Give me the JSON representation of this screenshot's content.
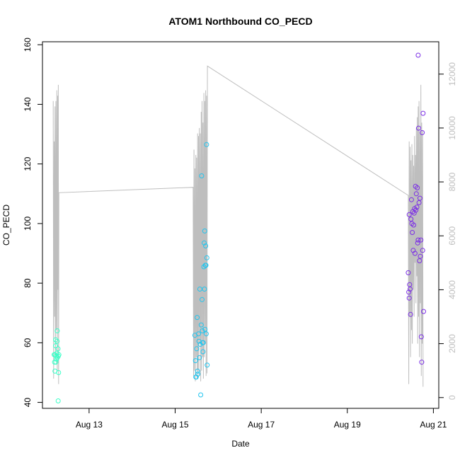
{
  "chart_data": {
    "type": "scatter",
    "title": "ATOM1 Northbound CO_PECD",
    "xlabel": "Date",
    "ylabel": "CO_PECD",
    "xlim": [
      "2023-08-11T22:00",
      "2023-08-21T03:00"
    ],
    "ylim": [
      38,
      161
    ],
    "y2lim": [
      -400,
      13200
    ],
    "x_ticks": [
      {
        "t": "2023-08-13T00:00",
        "label": "Aug 13"
      },
      {
        "t": "2023-08-15T00:00",
        "label": "Aug 15"
      },
      {
        "t": "2023-08-17T00:00",
        "label": "Aug 17"
      },
      {
        "t": "2023-08-19T00:00",
        "label": "Aug 19"
      },
      {
        "t": "2023-08-21T00:00",
        "label": "Aug 21"
      }
    ],
    "y_ticks": [
      40,
      60,
      80,
      100,
      120,
      140,
      160
    ],
    "y2_ticks": [
      0,
      2000,
      4000,
      6000,
      8000,
      10000,
      12000
    ],
    "colors": {
      "group1": "#3dffc8",
      "group2": "#21c5ef",
      "group3": "#7b2ee6",
      "secondary_line": "#bebebe",
      "axis": "#000000"
    },
    "series": [
      {
        "color": "#3dffc8",
        "points": [
          [
            "2023-08-12T04:30",
            56.0
          ],
          [
            "2023-08-12T04:45",
            53.5
          ],
          [
            "2023-08-12T05:00",
            50.5
          ],
          [
            "2023-08-12T05:00",
            56.0
          ],
          [
            "2023-08-12T05:20",
            59.0
          ],
          [
            "2023-08-12T05:20",
            61.0
          ],
          [
            "2023-08-12T05:30",
            53.5
          ],
          [
            "2023-08-12T05:45",
            55.5
          ],
          [
            "2023-08-12T05:50",
            54.5
          ],
          [
            "2023-08-12T06:00",
            56.5
          ],
          [
            "2023-08-12T06:10",
            60.5
          ],
          [
            "2023-08-12T06:15",
            64.0
          ],
          [
            "2023-08-12T06:20",
            55.0
          ],
          [
            "2023-08-12T06:40",
            58.0
          ],
          [
            "2023-08-12T06:45",
            40.5
          ],
          [
            "2023-08-12T06:50",
            55.5
          ],
          [
            "2023-08-12T07:00",
            50.0
          ],
          [
            "2023-08-12T07:10",
            56.0
          ]
        ]
      },
      {
        "color": "#21c5ef",
        "points": [
          [
            "2023-08-15T11:00",
            62.5
          ],
          [
            "2023-08-15T11:20",
            54.0
          ],
          [
            "2023-08-15T11:30",
            48.5
          ],
          [
            "2023-08-15T11:45",
            48.5
          ],
          [
            "2023-08-15T12:00",
            58.0
          ],
          [
            "2023-08-15T12:15",
            68.5
          ],
          [
            "2023-08-15T12:30",
            50.5
          ],
          [
            "2023-08-15T12:40",
            49.5
          ],
          [
            "2023-08-15T13:00",
            63.0
          ],
          [
            "2023-08-15T13:15",
            60.5
          ],
          [
            "2023-08-15T13:30",
            55.0
          ],
          [
            "2023-08-15T13:45",
            78.0
          ],
          [
            "2023-08-15T14:00",
            59.5
          ],
          [
            "2023-08-15T14:15",
            42.5
          ],
          [
            "2023-08-15T14:30",
            66.0
          ],
          [
            "2023-08-15T14:45",
            116.0
          ],
          [
            "2023-08-15T15:00",
            74.5
          ],
          [
            "2023-08-15T15:10",
            64.0
          ],
          [
            "2023-08-15T15:20",
            60.0
          ],
          [
            "2023-08-15T15:30",
            57.0
          ],
          [
            "2023-08-15T15:40",
            60.0
          ],
          [
            "2023-08-15T16:00",
            85.5
          ],
          [
            "2023-08-15T16:10",
            93.5
          ],
          [
            "2023-08-15T16:20",
            78.0
          ],
          [
            "2023-08-15T16:30",
            97.5
          ],
          [
            "2023-08-15T16:40",
            64.5
          ],
          [
            "2023-08-15T16:50",
            86.0
          ],
          [
            "2023-08-15T17:00",
            92.5
          ],
          [
            "2023-08-15T17:10",
            86.0
          ],
          [
            "2023-08-15T17:20",
            63.0
          ],
          [
            "2023-08-15T17:30",
            126.5
          ],
          [
            "2023-08-15T17:40",
            88.5
          ],
          [
            "2023-08-15T17:50",
            52.5
          ]
        ]
      },
      {
        "color": "#7b2ee6",
        "points": [
          [
            "2023-08-20T10:00",
            83.5
          ],
          [
            "2023-08-20T10:15",
            77.0
          ],
          [
            "2023-08-20T10:30",
            75.0
          ],
          [
            "2023-08-20T10:30",
            103.0
          ],
          [
            "2023-08-20T10:45",
            79.5
          ],
          [
            "2023-08-20T11:00",
            78.0
          ],
          [
            "2023-08-20T11:15",
            69.5
          ],
          [
            "2023-08-20T11:30",
            101.5
          ],
          [
            "2023-08-20T11:45",
            108.0
          ],
          [
            "2023-08-20T12:00",
            100.0
          ],
          [
            "2023-08-20T12:15",
            97.0
          ],
          [
            "2023-08-20T12:30",
            104.0
          ],
          [
            "2023-08-20T12:45",
            91.0
          ],
          [
            "2023-08-20T13:00",
            99.5
          ],
          [
            "2023-08-20T13:15",
            103.5
          ],
          [
            "2023-08-20T13:30",
            105.0
          ],
          [
            "2023-08-20T13:45",
            90.0
          ],
          [
            "2023-08-20T14:00",
            112.5
          ],
          [
            "2023-08-20T14:15",
            104.5
          ],
          [
            "2023-08-20T14:30",
            110.0
          ],
          [
            "2023-08-20T14:45",
            105.5
          ],
          [
            "2023-08-20T15:00",
            112.0
          ],
          [
            "2023-08-20T15:15",
            93.5
          ],
          [
            "2023-08-20T15:30",
            156.5
          ],
          [
            "2023-08-20T15:30",
            94.5
          ],
          [
            "2023-08-20T15:45",
            132.0
          ],
          [
            "2023-08-20T16:00",
            107.0
          ],
          [
            "2023-08-20T16:15",
            87.5
          ],
          [
            "2023-08-20T16:30",
            108.5
          ],
          [
            "2023-08-20T16:45",
            89.0
          ],
          [
            "2023-08-20T17:00",
            94.5
          ],
          [
            "2023-08-20T17:15",
            62.0
          ],
          [
            "2023-08-20T17:30",
            53.5
          ],
          [
            "2023-08-20T17:45",
            130.5
          ],
          [
            "2023-08-20T18:00",
            91.0
          ],
          [
            "2023-08-20T18:15",
            137.0
          ],
          [
            "2023-08-20T18:30",
            70.5
          ]
        ]
      }
    ],
    "secondary_line": {
      "axis": "right",
      "color": "#bebebe",
      "points": [
        [
          "2023-08-12T04:00",
          11000
        ],
        [
          "2023-08-12T04:15",
          700
        ],
        [
          "2023-08-12T04:30",
          9500
        ],
        [
          "2023-08-12T04:45",
          3000
        ],
        [
          "2023-08-12T05:00",
          10800
        ],
        [
          "2023-08-12T05:15",
          1500
        ],
        [
          "2023-08-12T05:30",
          11000
        ],
        [
          "2023-08-12T05:45",
          2500
        ],
        [
          "2023-08-12T06:00",
          11400
        ],
        [
          "2023-08-12T06:15",
          1000
        ],
        [
          "2023-08-12T06:30",
          11200
        ],
        [
          "2023-08-12T06:40",
          4000
        ],
        [
          "2023-08-12T06:50",
          11600
        ],
        [
          "2023-08-12T07:00",
          500
        ],
        [
          "2023-08-12T07:10",
          7600
        ],
        [
          "2023-08-15T10:00",
          7800
        ],
        [
          "2023-08-15T10:15",
          800
        ],
        [
          "2023-08-15T10:30",
          9200
        ],
        [
          "2023-08-15T10:45",
          1000
        ],
        [
          "2023-08-15T11:00",
          8500
        ],
        [
          "2023-08-15T11:15",
          600
        ],
        [
          "2023-08-15T11:30",
          9000
        ],
        [
          "2023-08-15T11:45",
          1500
        ],
        [
          "2023-08-15T12:00",
          8900
        ],
        [
          "2023-08-15T12:15",
          700
        ],
        [
          "2023-08-15T12:30",
          9800
        ],
        [
          "2023-08-15T12:45",
          1000
        ],
        [
          "2023-08-15T13:00",
          9700
        ],
        [
          "2023-08-15T13:15",
          800
        ],
        [
          "2023-08-15T13:30",
          10000
        ],
        [
          "2023-08-15T13:45",
          2000
        ],
        [
          "2023-08-15T14:00",
          9800
        ],
        [
          "2023-08-15T14:15",
          600
        ],
        [
          "2023-08-15T14:30",
          10600
        ],
        [
          "2023-08-15T14:45",
          1000
        ],
        [
          "2023-08-15T15:00",
          11000
        ],
        [
          "2023-08-15T15:15",
          1500
        ],
        [
          "2023-08-15T15:30",
          10200
        ],
        [
          "2023-08-15T15:45",
          700
        ],
        [
          "2023-08-15T16:00",
          11300
        ],
        [
          "2023-08-15T16:15",
          1500
        ],
        [
          "2023-08-15T16:30",
          11000
        ],
        [
          "2023-08-15T16:45",
          2000
        ],
        [
          "2023-08-15T17:00",
          11400
        ],
        [
          "2023-08-15T17:15",
          800
        ],
        [
          "2023-08-15T17:30",
          11200
        ],
        [
          "2023-08-15T17:45",
          900
        ],
        [
          "2023-08-15T18:00",
          12300
        ],
        [
          "2023-08-20T10:00",
          7500
        ],
        [
          "2023-08-20T10:15",
          500
        ],
        [
          "2023-08-20T10:30",
          9500
        ],
        [
          "2023-08-20T10:45",
          3000
        ],
        [
          "2023-08-20T11:00",
          9300
        ],
        [
          "2023-08-20T11:15",
          1500
        ],
        [
          "2023-08-20T11:30",
          8800
        ],
        [
          "2023-08-20T11:45",
          2500
        ],
        [
          "2023-08-20T12:00",
          9400
        ],
        [
          "2023-08-20T12:15",
          2000
        ],
        [
          "2023-08-20T12:30",
          9000
        ],
        [
          "2023-08-20T12:45",
          4000
        ],
        [
          "2023-08-20T13:00",
          8600
        ],
        [
          "2023-08-20T13:15",
          3000
        ],
        [
          "2023-08-20T13:30",
          9700
        ],
        [
          "2023-08-20T13:45",
          5000
        ],
        [
          "2023-08-20T14:00",
          9000
        ],
        [
          "2023-08-20T14:15",
          3500
        ],
        [
          "2023-08-20T14:30",
          10000
        ],
        [
          "2023-08-20T14:45",
          4500
        ],
        [
          "2023-08-20T15:00",
          10400
        ],
        [
          "2023-08-20T15:15",
          2000
        ],
        [
          "2023-08-20T15:30",
          10800
        ],
        [
          "2023-08-20T15:45",
          3000
        ],
        [
          "2023-08-20T16:00",
          11000
        ],
        [
          "2023-08-20T16:15",
          1500
        ],
        [
          "2023-08-20T16:30",
          9800
        ],
        [
          "2023-08-20T16:45",
          3500
        ],
        [
          "2023-08-20T17:00",
          11600
        ],
        [
          "2023-08-20T17:15",
          800
        ],
        [
          "2023-08-20T17:30",
          10200
        ],
        [
          "2023-08-20T17:45",
          2000
        ],
        [
          "2023-08-20T18:00",
          9900
        ],
        [
          "2023-08-20T18:15",
          400
        ]
      ]
    }
  }
}
